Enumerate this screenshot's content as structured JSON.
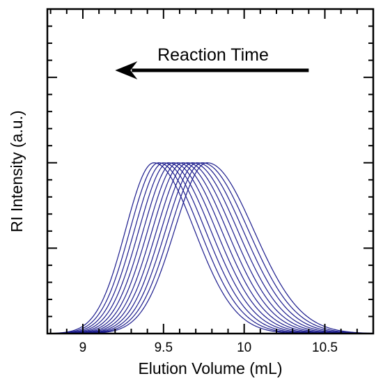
{
  "chart_data": {
    "type": "line",
    "title": "",
    "xlabel": "Elution Volume (mL)",
    "ylabel": "RI Intensity (a.u.)",
    "xlim": [
      8.78,
      10.8
    ],
    "ylim": [
      0,
      1.9
    ],
    "x_ticks": [
      9,
      9.5,
      10,
      10.5
    ],
    "x_tick_labels": [
      "9",
      "9.5",
      "10",
      "10.5"
    ],
    "y_tick_labels_shown": false,
    "grid": false,
    "legend": "none",
    "line_color": "#1a1a8c",
    "annotation": {
      "text": "Reaction Time",
      "arrow_from_x": 10.4,
      "arrow_to_x": 9.2,
      "direction": "left"
    },
    "series_shape": "gaussian-like elution peaks, normalized height 1.0",
    "series": [
      {
        "peak_x": 9.44,
        "width": 0.225,
        "values_note": "peak 1.0"
      },
      {
        "peak_x": 9.47,
        "width": 0.228,
        "values_note": "peak 1.0"
      },
      {
        "peak_x": 9.5,
        "width": 0.231,
        "values_note": "peak 1.0"
      },
      {
        "peak_x": 9.53,
        "width": 0.234,
        "values_note": "peak 1.0"
      },
      {
        "peak_x": 9.56,
        "width": 0.237,
        "values_note": "peak 1.0"
      },
      {
        "peak_x": 9.59,
        "width": 0.24,
        "values_note": "peak 1.0"
      },
      {
        "peak_x": 9.62,
        "width": 0.243,
        "values_note": "peak 1.0"
      },
      {
        "peak_x": 9.65,
        "width": 0.246,
        "values_note": "peak 1.0"
      },
      {
        "peak_x": 9.68,
        "width": 0.249,
        "values_note": "peak 1.0"
      },
      {
        "peak_x": 9.71,
        "width": 0.252,
        "values_note": "peak 1.0"
      },
      {
        "peak_x": 9.74,
        "width": 0.255,
        "values_note": "peak 1.0"
      },
      {
        "peak_x": 9.77,
        "width": 0.258,
        "values_note": "peak 1.0"
      }
    ]
  }
}
